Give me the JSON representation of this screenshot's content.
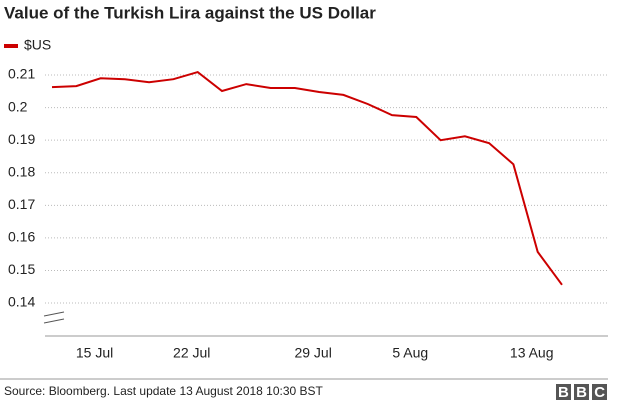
{
  "chart_data": {
    "type": "line",
    "title": "Value of the Turkish Lira against the US Dollar",
    "categories": [
      null,
      null,
      "15 Jul",
      null,
      null,
      null,
      "22 Jul",
      null,
      null,
      null,
      null,
      "29 Jul",
      null,
      null,
      null,
      "5 Aug",
      null,
      null,
      null,
      null,
      "13 Aug",
      null
    ],
    "series": [
      {
        "name": "$US",
        "color": "#cc0000",
        "values": [
          0.2063,
          0.2066,
          0.209,
          0.2087,
          0.2078,
          0.2087,
          0.2109,
          0.2051,
          0.2072,
          0.206,
          0.206,
          0.2048,
          0.2039,
          0.2011,
          0.1977,
          0.1971,
          0.19,
          0.1912,
          0.1891,
          0.1826,
          0.1557,
          0.1456
        ]
      }
    ],
    "ylim": [
      0.132,
      0.212
    ],
    "yticks": [
      0.14,
      0.15,
      0.16,
      0.17,
      0.18,
      0.19,
      0.2,
      0.21
    ],
    "grid": true,
    "legend": "top-left",
    "source": "Source: Bloomberg. Last update 13 August 2018 10:30 BST",
    "logo": "BBC"
  }
}
